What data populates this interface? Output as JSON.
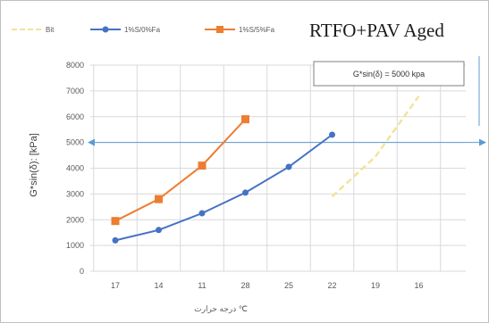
{
  "chart_data": {
    "type": "line",
    "title": "RTFO+PAV Aged",
    "xlabel": "درجه حرارت ℃",
    "ylabel": "G*sin(δ): [kPa]",
    "categories": [
      "17",
      "14",
      "11",
      "28",
      "25",
      "22",
      "19",
      "16"
    ],
    "ylim": [
      0,
      8000
    ],
    "yticks": [
      0,
      1000,
      2000,
      3000,
      4000,
      5000,
      6000,
      7000,
      8000
    ],
    "grid": true,
    "legend_position": "top-left",
    "series": [
      {
        "name": "Bit",
        "color": "#f2e39b",
        "dashed": true,
        "marker": "none",
        "values": [
          null,
          null,
          null,
          null,
          null,
          2900,
          4450,
          6800
        ]
      },
      {
        "name": "1%S/0%Fa",
        "color": "#4472c4",
        "dashed": false,
        "marker": "circle",
        "values": [
          1200,
          1600,
          2250,
          3050,
          4050,
          5300,
          null,
          null
        ]
      },
      {
        "name": "1%S/5%Fa",
        "color": "#ed7d31",
        "dashed": false,
        "marker": "square",
        "values": [
          1950,
          2800,
          4100,
          5900,
          null,
          null,
          null,
          null
        ]
      }
    ],
    "reference_line": {
      "value": 5000,
      "label": "G*sin(δ) = 5000 kpa",
      "color": "#5b9bd5"
    }
  }
}
